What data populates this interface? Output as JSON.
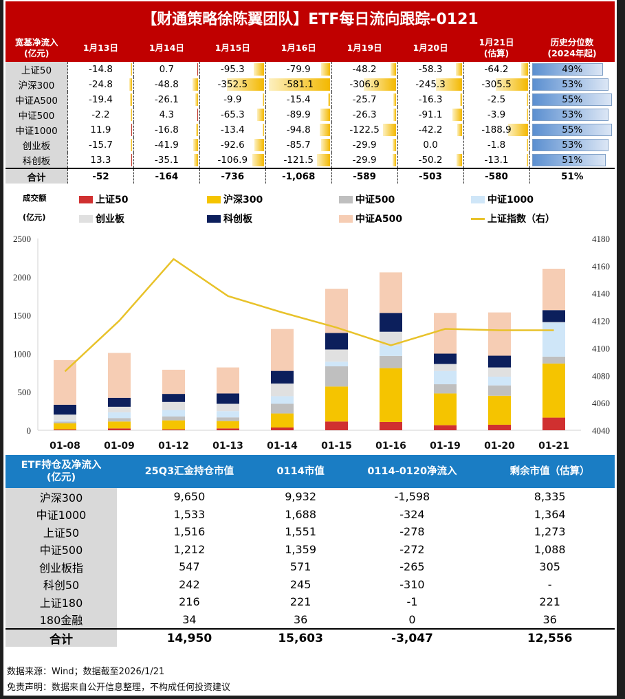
{
  "title": "【财通策略徐陈翼团队】ETF每日流向跟踪-0121",
  "flow_table": {
    "corner": [
      "宽基净流入",
      "(亿元)"
    ],
    "columns": [
      [
        "1月13日"
      ],
      [
        "1月14日"
      ],
      [
        "1月15日"
      ],
      [
        "1月16日"
      ],
      [
        "1月19日"
      ],
      [
        "1月20日"
      ],
      [
        "1月21日",
        "(估算)"
      ]
    ],
    "pct_header": [
      "历史分位数",
      "(2024年起)"
    ],
    "rows": [
      {
        "label": "上证50",
        "values": [
          "-14.8",
          "0.7",
          "-95.3",
          "-79.9",
          "-48.2",
          "-58.3",
          "-64.2"
        ],
        "pct": "49%"
      },
      {
        "label": "沪深300",
        "values": [
          "-24.8",
          "-48.8",
          "-352.5",
          "-581.1",
          "-306.9",
          "-245.3",
          "-305.5"
        ],
        "pct": "53%"
      },
      {
        "label": "中证A500",
        "values": [
          "-19.4",
          "-26.1",
          "-9.9",
          "-15.4",
          "-25.7",
          "-16.3",
          "-2.5"
        ],
        "pct": "55%"
      },
      {
        "label": "中证500",
        "values": [
          "-2.2",
          "4.3",
          "-65.3",
          "-89.9",
          "-26.3",
          "-91.1",
          "-3.9"
        ],
        "pct": "53%"
      },
      {
        "label": "中证1000",
        "values": [
          "11.9",
          "-16.8",
          "-13.4",
          "-94.8",
          "-122.5",
          "-42.2",
          "-188.9"
        ],
        "pct": "55%"
      },
      {
        "label": "创业板",
        "values": [
          "-15.7",
          "-41.9",
          "-92.6",
          "-85.7",
          "-29.9",
          "0.0",
          "-1.8"
        ],
        "pct": "53%"
      },
      {
        "label": "科创板",
        "values": [
          "13.3",
          "-35.1",
          "-106.9",
          "-121.5",
          "-29.9",
          "-50.2",
          "-13.1"
        ],
        "pct": "51%"
      }
    ],
    "total": {
      "label": "合计",
      "values": [
        "-52",
        "-164",
        "-736",
        "-1,068",
        "-589",
        "-503",
        "-580"
      ],
      "pct": "51%"
    }
  },
  "chart_data": {
    "type": "bar",
    "stacked": true,
    "unit_label": [
      "成交额",
      "(亿元)"
    ],
    "categories": [
      "01-08",
      "01-09",
      "01-12",
      "01-13",
      "01-14",
      "01-15",
      "01-16",
      "01-19",
      "01-20",
      "01-21"
    ],
    "ylim": [
      0,
      2500
    ],
    "yticks": [
      0,
      500,
      1000,
      1500,
      2000,
      2500
    ],
    "y2lim": [
      4040,
      4180
    ],
    "y2ticks": [
      4040,
      4060,
      4080,
      4100,
      4120,
      4140,
      4160,
      4180
    ],
    "grid": false,
    "legend_position": "top",
    "series": [
      {
        "name": "上证50",
        "color": "#d03030",
        "values": [
          12,
          24,
          12,
          24,
          36,
          114,
          108,
          66,
          72,
          165
        ]
      },
      {
        "name": "沪深300",
        "color": "#f5c400",
        "values": [
          78,
          90,
          117,
          96,
          183,
          456,
          702,
          414,
          378,
          705
        ]
      },
      {
        "name": "中证500",
        "color": "#bfbfbf",
        "values": [
          24,
          45,
          51,
          48,
          126,
          264,
          159,
          120,
          135,
          90
        ]
      },
      {
        "name": "中证1000",
        "color": "#cfe6f8",
        "values": [
          16,
          75,
          84,
          81,
          99,
          60,
          135,
          174,
          114,
          444
        ]
      },
      {
        "name": "创业板",
        "color": "#e0e0e0",
        "values": [
          74,
          72,
          105,
          96,
          165,
          159,
          180,
          90,
          120,
          6
        ]
      },
      {
        "name": "科创板",
        "color": "#0c1f5c",
        "values": [
          129,
          117,
          105,
          135,
          165,
          216,
          246,
          135,
          153,
          156
        ]
      },
      {
        "name": "中证A500",
        "color": "#f6cdb4",
        "values": [
          582,
          585,
          315,
          339,
          546,
          576,
          528,
          531,
          564,
          540
        ]
      }
    ],
    "line": {
      "name": "上证指数（右）",
      "color": "#e8c22a",
      "axis": "right",
      "values": [
        4083,
        4120,
        4165,
        4138,
        4126,
        4115,
        4102,
        4114,
        4113,
        4113
      ]
    },
    "legend_order": [
      "上证50",
      "沪深300",
      "中证500",
      "中证1000",
      "创业板",
      "科创板",
      "中证A500",
      "上证指数（右）"
    ]
  },
  "holdings_table": {
    "headers": [
      "ETF持仓及净流入\n(亿元)",
      "25Q3汇金持仓市值",
      "0114市值",
      "0114-0120净流入",
      "剩余市值（估算）"
    ],
    "rows": [
      [
        "沪深300",
        "9,650",
        "9,932",
        "-1,598",
        "8,335"
      ],
      [
        "中证1000",
        "1,533",
        "1,688",
        "-324",
        "1,364"
      ],
      [
        "上证50",
        "1,516",
        "1,551",
        "-278",
        "1,273"
      ],
      [
        "中证500",
        "1,212",
        "1,359",
        "-272",
        "1,088"
      ],
      [
        "创业板指",
        "547",
        "571",
        "-265",
        "305"
      ],
      [
        "科创50",
        "242",
        "245",
        "-310",
        "-"
      ],
      [
        "上证180",
        "216",
        "221",
        "-1",
        "221"
      ],
      [
        "180金融",
        "34",
        "36",
        "0",
        "36"
      ]
    ],
    "total": [
      "合计",
      "14,950",
      "15,603",
      "-3,047",
      "12,556"
    ]
  },
  "footer": {
    "source": "数据来源：Wind；数据截至2026/1/21",
    "disclaimer": "免责声明：数据来自公开信息整理，不构成任何投资建议"
  }
}
